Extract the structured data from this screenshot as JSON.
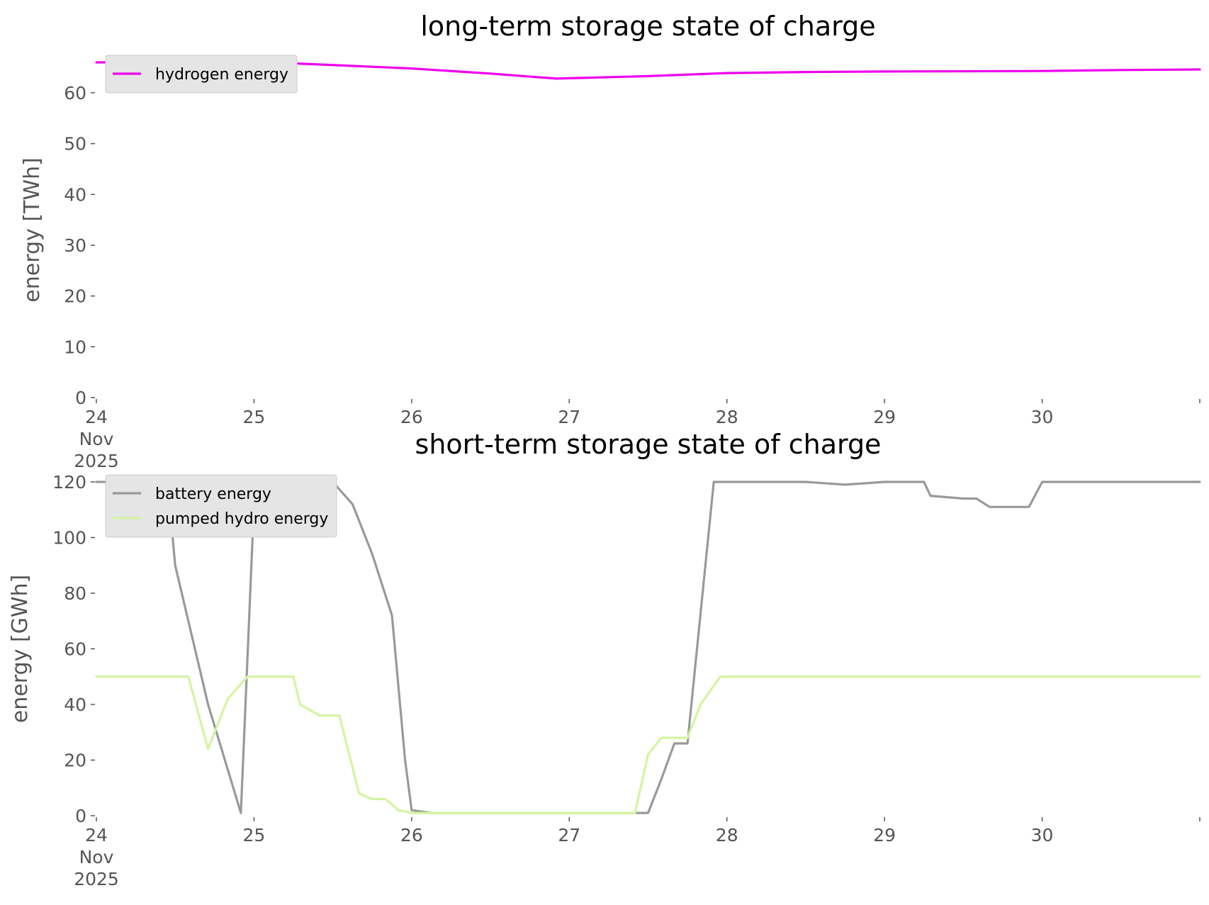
{
  "chart_data": [
    {
      "type": "line",
      "title": "long-term storage state of charge",
      "xlabel": "",
      "ylabel": "energy [TWh]",
      "ylim": [
        0,
        66
      ],
      "yticks": [
        "0",
        "10",
        "20",
        "30",
        "40",
        "50",
        "60"
      ],
      "x_tick_labels": [
        "24\nNov\n2025",
        "25",
        "26",
        "27",
        "28",
        "29",
        "30"
      ],
      "xlim": [
        "2025-11-24",
        "2025-12-01"
      ],
      "grid": false,
      "legend_position": "top-left",
      "series": [
        {
          "name": "hydrogen energy",
          "color": "#ee00ee",
          "x": [
            "2025-11-24 00:00",
            "2025-11-25 00:00",
            "2025-11-25 06:00",
            "2025-11-26 00:00",
            "2025-11-26 12:00",
            "2025-11-26 22:00",
            "2025-11-27 12:00",
            "2025-11-28 00:00",
            "2025-11-28 12:00",
            "2025-11-29 00:00",
            "2025-11-30 00:00",
            "2025-11-30 12:00",
            "2025-12-01 00:00"
          ],
          "values": [
            66.0,
            66.0,
            65.8,
            64.8,
            63.8,
            62.8,
            63.3,
            63.9,
            64.1,
            64.2,
            64.3,
            64.5,
            64.6
          ]
        }
      ]
    },
    {
      "type": "line",
      "title": "short-term storage state of charge",
      "xlabel": "",
      "ylabel": "energy [GWh]",
      "ylim": [
        0,
        120
      ],
      "yticks": [
        "0",
        "20",
        "40",
        "60",
        "80",
        "100",
        "120"
      ],
      "x_tick_labels": [
        "24\nNov\n2025",
        "25",
        "26",
        "27",
        "28",
        "29",
        "30"
      ],
      "xlim": [
        "2025-11-24",
        "2025-12-01"
      ],
      "grid": false,
      "legend_position": "top-left",
      "series": [
        {
          "name": "battery energy",
          "color": "#999999",
          "x": [
            "2025-11-24 00:00",
            "2025-11-24 06:00",
            "2025-11-24 07:00",
            "2025-11-24 11:00",
            "2025-11-24 12:00",
            "2025-11-24 17:00",
            "2025-11-24 22:00",
            "2025-11-25 00:00",
            "2025-11-25 08:00",
            "2025-11-25 12:00",
            "2025-11-25 15:00",
            "2025-11-25 18:00",
            "2025-11-25 21:00",
            "2025-11-25 23:00",
            "2025-11-26 00:00",
            "2025-11-26 03:00",
            "2025-11-26 06:00",
            "2025-11-26 09:00",
            "2025-11-26 12:00",
            "2025-11-26 14:00",
            "2025-11-26 16:00",
            "2025-11-27 00:00",
            "2025-11-27 12:00",
            "2025-11-27 14:00",
            "2025-11-27 16:00",
            "2025-11-27 18:00",
            "2025-11-27 22:00",
            "2025-11-28 00:00",
            "2025-11-28 12:00",
            "2025-11-28 18:00",
            "2025-11-29 00:00",
            "2025-11-29 06:00",
            "2025-11-29 07:00",
            "2025-11-29 12:00",
            "2025-11-29 14:00",
            "2025-11-29 16:00",
            "2025-11-29 20:00",
            "2025-11-29 22:00",
            "2025-11-30 00:00",
            "2025-12-01 00:00"
          ],
          "values": [
            120,
            120,
            116,
            116,
            90,
            40,
            1,
            112,
            112,
            120,
            112,
            94,
            72,
            20,
            2,
            1,
            1,
            1,
            1,
            1,
            1,
            1,
            1,
            13,
            26,
            26,
            120,
            120,
            120,
            119,
            120,
            120,
            115,
            114,
            114,
            111,
            111,
            111,
            120,
            120
          ]
        },
        {
          "name": "pumped hydro energy",
          "color": "#d4f4a0",
          "x": [
            "2025-11-24 00:00",
            "2025-11-24 14:00",
            "2025-11-24 17:00",
            "2025-11-24 20:00",
            "2025-11-24 23:00",
            "2025-11-25 00:00",
            "2025-11-25 06:00",
            "2025-11-25 07:00",
            "2025-11-25 10:00",
            "2025-11-25 13:00",
            "2025-11-25 16:00",
            "2025-11-25 18:00",
            "2025-11-25 20:00",
            "2025-11-25 21:00",
            "2025-11-25 22:00",
            "2025-11-26 00:00",
            "2025-11-27 10:00",
            "2025-11-27 12:00",
            "2025-11-27 14:00",
            "2025-11-27 16:00",
            "2025-11-27 18:00",
            "2025-11-27 20:00",
            "2025-11-27 23:00",
            "2025-11-28 00:00",
            "2025-12-01 00:00"
          ],
          "values": [
            50,
            50,
            24,
            42,
            50,
            50,
            50,
            40,
            36,
            36,
            8,
            6,
            6,
            4,
            2,
            1,
            1,
            22,
            28,
            28,
            28,
            40,
            50,
            50,
            50
          ]
        }
      ]
    }
  ]
}
